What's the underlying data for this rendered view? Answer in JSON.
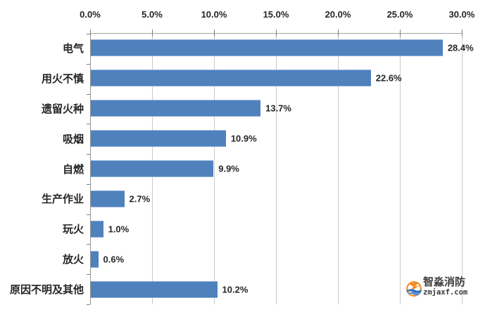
{
  "chart_data": {
    "type": "bar",
    "orientation": "horizontal",
    "title": "",
    "xlabel": "",
    "ylabel": "",
    "categories": [
      "电气",
      "用火不慎",
      "遗留火种",
      "吸烟",
      "自燃",
      "生产作业",
      "玩火",
      "放火",
      "原因不明及其他"
    ],
    "values": [
      28.4,
      22.6,
      13.7,
      10.9,
      9.9,
      2.7,
      1.0,
      0.6,
      10.2
    ],
    "value_labels": [
      "28.4%",
      "22.6%",
      "13.7%",
      "10.9%",
      "9.9%",
      "2.7%",
      "1.0%",
      "0.6%",
      "10.2%"
    ],
    "x_ticks": [
      "0.0%",
      "5.0%",
      "10.0%",
      "15.0%",
      "20.0%",
      "25.0%",
      "30.0%"
    ],
    "xlim": [
      0,
      30
    ],
    "grid": true,
    "tick_labels_position": "top",
    "legend": "none",
    "bar_color": "#4F81BD",
    "bar_edge_color": "#8FAFD9",
    "gridline_color": "#C9C9C9",
    "axis_color": "#949494",
    "text_color": "#262626"
  },
  "watermark": {
    "name": "智淼消防",
    "url": "zmjaxf.com",
    "name_color": "#3C3C3C",
    "url_color": "#383838",
    "icon": "zhimiao-fire-logo-icon",
    "icon_orange": "#F28A1E",
    "icon_blue": "#2E6FBA",
    "icon_light_blue": "#5B93D6"
  }
}
